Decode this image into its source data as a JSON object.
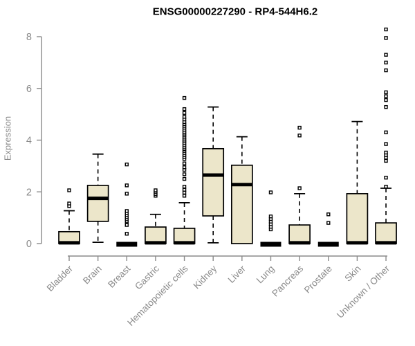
{
  "title": "ENSG00000227290 - RP4-544H6.2",
  "chart_data": {
    "type": "boxplot",
    "title": "ENSG00000227290 - RP4-544H6.2",
    "xlabel": "",
    "ylabel": "Expression",
    "ylim": [
      0,
      8
    ],
    "yticks": [
      0,
      2,
      4,
      6,
      8
    ],
    "grid": false,
    "legend": "none",
    "categories": [
      "Bladder",
      "Brain",
      "Breast",
      "Gastric",
      "Hematopoietic cells",
      "Kidney",
      "Liver",
      "Lung",
      "Pancreas",
      "Prostate",
      "Skin",
      "Unknown / Other"
    ],
    "series": [
      {
        "name": "Bladder",
        "whisker_low": 0,
        "q1": 0,
        "median": 0.03,
        "q3": 0.46,
        "whisker_high": 1.27,
        "outliers": [
          1.45,
          1.55,
          2.06
        ]
      },
      {
        "name": "Brain",
        "whisker_low": 0.05,
        "q1": 0.86,
        "median": 1.75,
        "q3": 2.25,
        "whisker_high": 3.46,
        "outliers": []
      },
      {
        "name": "Breast",
        "whisker_low": 0,
        "q1": 0,
        "median": 0,
        "q3": 0,
        "whisker_high": 0,
        "outliers": [
          0.38,
          0.72,
          0.86,
          0.94,
          1.02,
          1.1,
          1.18,
          1.26,
          1.93,
          2.25,
          3.06
        ]
      },
      {
        "name": "Gastric",
        "whisker_low": 0,
        "q1": 0,
        "median": 0.03,
        "q3": 0.64,
        "whisker_high": 1.13,
        "outliers": [
          1.85,
          1.92,
          2.0,
          2.06
        ]
      },
      {
        "name": "Hematopoietic cells",
        "whisker_low": 0,
        "q1": 0,
        "median": 0.03,
        "q3": 0.59,
        "whisker_high": 1.58,
        "outliers": [
          1.85,
          1.97,
          2.08,
          2.2,
          2.5,
          2.68,
          2.85,
          2.95,
          3.1,
          3.27,
          3.35,
          3.42,
          3.5,
          3.58,
          3.65,
          3.72,
          3.8,
          3.88,
          3.95,
          4.02,
          4.1,
          4.18,
          4.25,
          4.32,
          4.4,
          4.48,
          4.55,
          4.62,
          4.7,
          4.8,
          4.9,
          5.05,
          5.2,
          5.63
        ]
      },
      {
        "name": "Kidney",
        "whisker_low": 0.03,
        "q1": 1.07,
        "median": 2.65,
        "q3": 3.67,
        "whisker_high": 5.28,
        "outliers": []
      },
      {
        "name": "Liver",
        "whisker_low": 0,
        "q1": 0,
        "median": 2.28,
        "q3": 3.03,
        "whisker_high": 4.13,
        "outliers": []
      },
      {
        "name": "Lung",
        "whisker_low": 0,
        "q1": 0,
        "median": 0,
        "q3": 0,
        "whisker_high": 0,
        "outliers": [
          0.55,
          0.65,
          0.75,
          0.85,
          0.95,
          1.05,
          1.98
        ]
      },
      {
        "name": "Pancreas",
        "whisker_low": 0,
        "q1": 0,
        "median": 0.03,
        "q3": 0.72,
        "whisker_high": 1.93,
        "outliers": [
          2.14,
          4.18,
          4.48
        ]
      },
      {
        "name": "Prostate",
        "whisker_low": 0,
        "q1": 0,
        "median": 0,
        "q3": 0,
        "whisker_high": 0,
        "outliers": [
          0.8,
          1.13
        ]
      },
      {
        "name": "Skin",
        "whisker_low": 0,
        "q1": 0,
        "median": 0.03,
        "q3": 1.93,
        "whisker_high": 4.72,
        "outliers": []
      },
      {
        "name": "Unknown / Other",
        "whisker_low": 0,
        "q1": 0,
        "median": 0.03,
        "q3": 0.8,
        "whisker_high": 2.14,
        "outliers": [
          2.2,
          2.55,
          3.2,
          3.32,
          3.42,
          3.52,
          3.85,
          4.3,
          5.28,
          5.55,
          5.7,
          5.85,
          6.7,
          7.0,
          7.3,
          7.95,
          8.28
        ]
      }
    ],
    "colors": {
      "box_fill": "#ece6ca",
      "box_stroke": "#000000",
      "median": "#000000",
      "outlier_stroke": "#000000",
      "axis": "#8a8a8a",
      "tick_label": "#8a8a8a",
      "title": "#000000"
    }
  }
}
